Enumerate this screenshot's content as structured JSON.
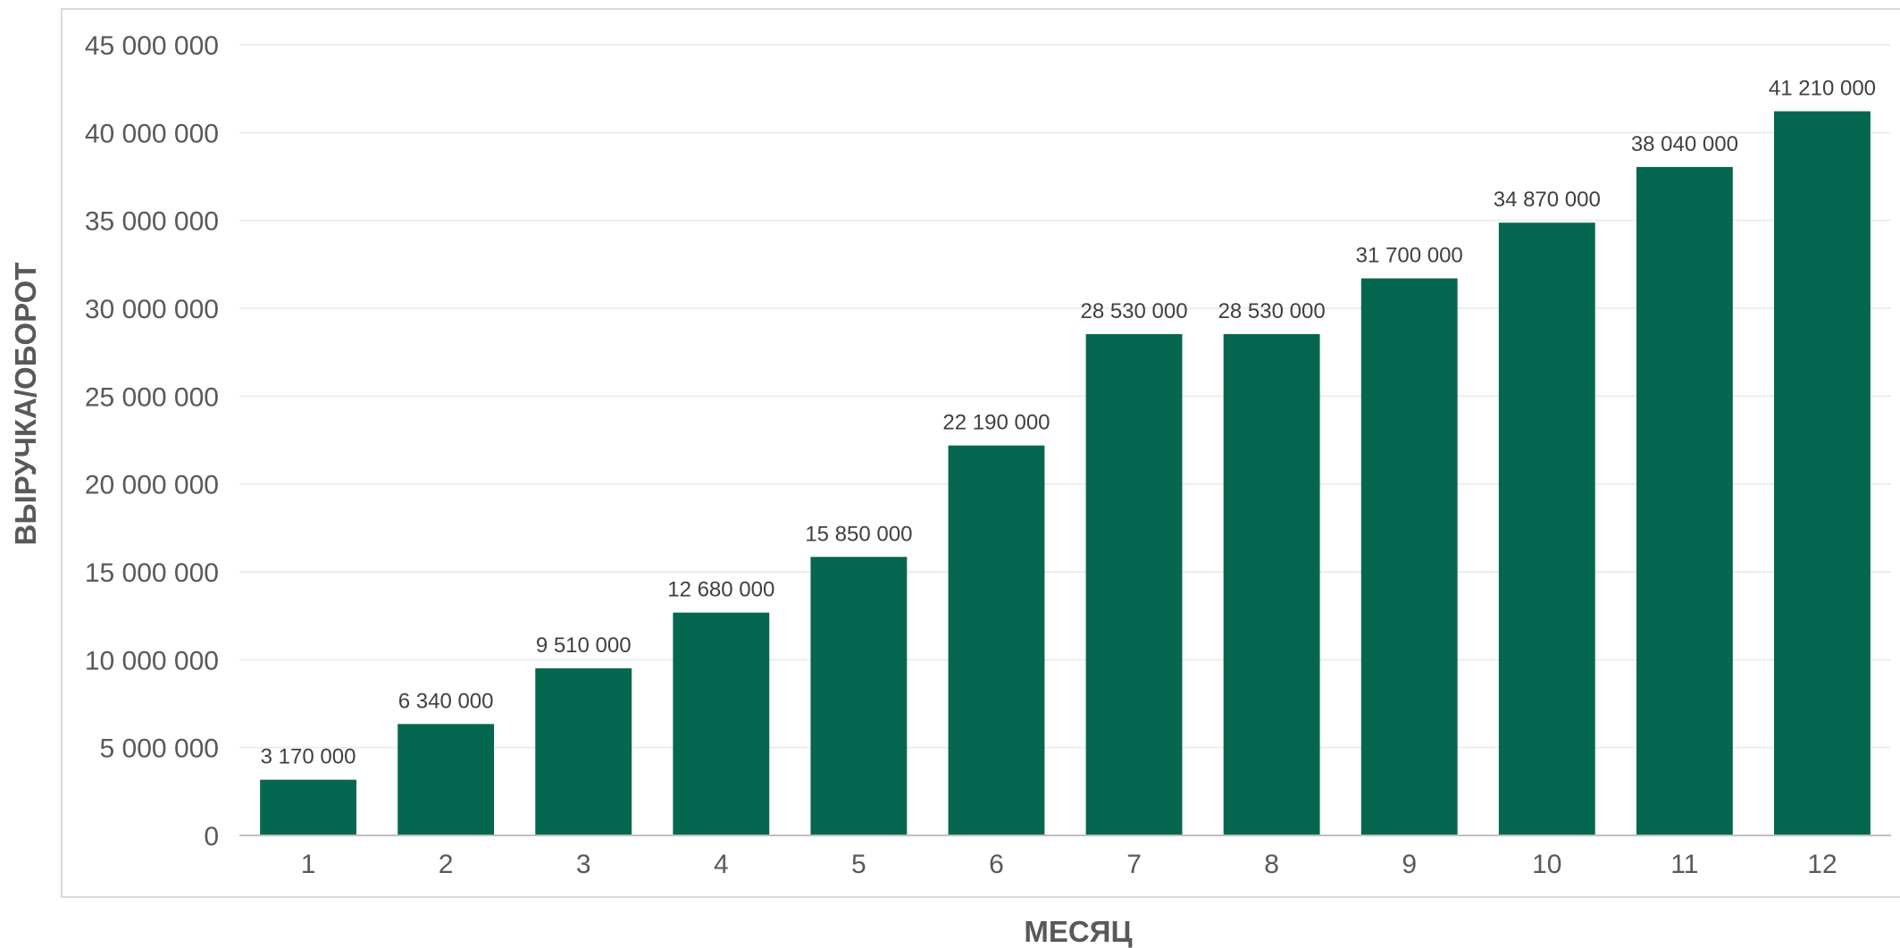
{
  "chart_data": {
    "type": "bar",
    "title": "",
    "xlabel": "МЕСЯЦ",
    "ylabel": "ВЫРУЧКА/ОБОРОТ",
    "categories": [
      "1",
      "2",
      "3",
      "4",
      "5",
      "6",
      "7",
      "8",
      "9",
      "10",
      "11",
      "12"
    ],
    "values": [
      3170000,
      6340000,
      9510000,
      12680000,
      15850000,
      22190000,
      28530000,
      28530000,
      31700000,
      34870000,
      38040000,
      41210000
    ],
    "data_labels": [
      "3 170 000",
      "6 340 000",
      "9 510 000",
      "12 680 000",
      "15 850 000",
      "22 190 000",
      "28 530 000",
      "28 530 000",
      "31 700 000",
      "34 870 000",
      "38 040 000",
      "41 210 000"
    ],
    "ylim": [
      0,
      45000000
    ],
    "yticks": [
      0,
      5000000,
      10000000,
      15000000,
      20000000,
      25000000,
      30000000,
      35000000,
      40000000,
      45000000
    ],
    "ytick_labels": [
      "0",
      "5 000 000",
      "10 000 000",
      "15 000 000",
      "20 000 000",
      "25 000 000",
      "30 000 000",
      "35 000 000",
      "40 000 000",
      "45 000 000"
    ],
    "grid": true,
    "legend": "none",
    "bar_color": "#05674F",
    "gridline_color": "#EDEDED",
    "axis_color": "#BFBFBF",
    "text_color": "#595959"
  }
}
